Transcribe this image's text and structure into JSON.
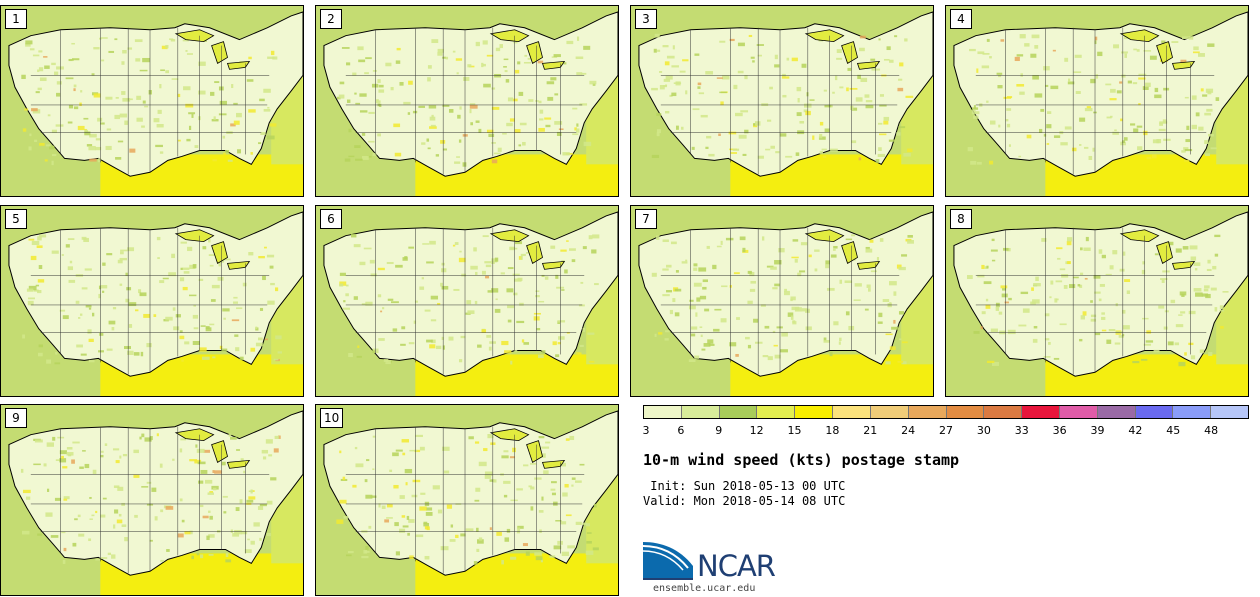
{
  "panels": [
    {
      "label": "1"
    },
    {
      "label": "2"
    },
    {
      "label": "3"
    },
    {
      "label": "4"
    },
    {
      "label": "5"
    },
    {
      "label": "6"
    },
    {
      "label": "7"
    },
    {
      "label": "8"
    },
    {
      "label": "9"
    },
    {
      "label": "10"
    }
  ],
  "colorbar": {
    "colors": [
      "#eef6c8",
      "#d8ec9a",
      "#a8cc5a",
      "#e3ee50",
      "#f8ee00",
      "#fbe27c",
      "#f0cc78",
      "#e8a85c",
      "#e38c42",
      "#db7a42",
      "#e8163c",
      "#e05ca8",
      "#9a6aa6",
      "#6a6af0",
      "#8a9cf8",
      "#b6c6f8"
    ],
    "ticks": [
      "3",
      "6",
      "9",
      "12",
      "15",
      "18",
      "21",
      "24",
      "27",
      "30",
      "33",
      "36",
      "39",
      "42",
      "45",
      "48"
    ]
  },
  "title": "10-m wind speed (kts) postage stamp",
  "init": " Init: Sun 2018-05-13 00 UTC",
  "valid": "Valid: Mon 2018-05-14 08 UTC",
  "logo": {
    "text": "NCAR",
    "site": "ensemble.ucar.edu"
  }
}
